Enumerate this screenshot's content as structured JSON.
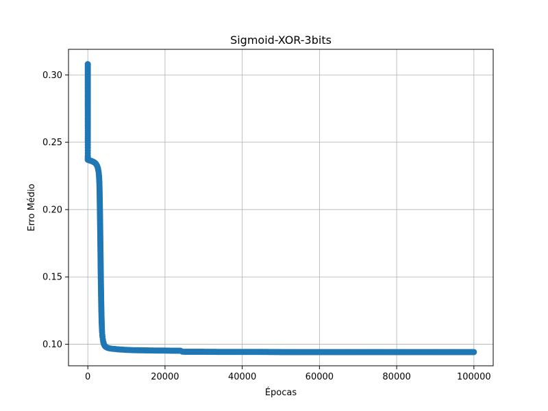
{
  "chart_data": {
    "type": "scatter",
    "title": "Sigmoid-XOR-3bits",
    "xlabel": "Épocas",
    "ylabel": "Erro Médio",
    "xlim": [
      -5000,
      105000
    ],
    "ylim": [
      0.084,
      0.319
    ],
    "xticks": [
      0,
      20000,
      40000,
      60000,
      80000,
      100000
    ],
    "yticks": [
      0.1,
      0.15,
      0.2,
      0.25,
      0.3
    ],
    "xtick_labels": [
      "0",
      "20000",
      "40000",
      "60000",
      "80000",
      "100000"
    ],
    "ytick_labels": [
      "0.10",
      "0.15",
      "0.20",
      "0.25",
      "0.30"
    ],
    "grid": true,
    "marker_color": "#1f77b4",
    "series": [
      {
        "x": [
          0,
          0,
          0,
          0,
          0,
          0,
          0,
          0,
          0,
          0,
          0,
          0,
          0,
          0,
          0,
          0,
          0,
          0,
          0,
          0,
          0,
          200,
          400,
          600,
          800,
          1000,
          1200,
          1400,
          1600,
          1800,
          2000,
          2200,
          2400,
          2600,
          2800,
          2900,
          3000,
          3050,
          3100,
          3150,
          3200,
          3250,
          3300,
          3350,
          3400,
          3450,
          3500,
          3550,
          3600,
          3650,
          3700,
          3750,
          3800,
          3900,
          4000,
          4200,
          4400,
          4600,
          4800,
          5000,
          5300,
          5600,
          6000,
          6500,
          7000,
          7500,
          8000,
          9000,
          10000,
          11000,
          12000,
          14000,
          16000,
          18000,
          20000,
          22000,
          24000,
          24500,
          25000,
          30000,
          35000,
          40000,
          45000,
          50000,
          55000,
          60000,
          65000,
          70000,
          75000,
          80000,
          85000,
          90000,
          95000,
          100000
        ],
        "y": [
          0.308,
          0.3,
          0.292,
          0.286,
          0.28,
          0.275,
          0.27,
          0.266,
          0.262,
          0.259,
          0.256,
          0.253,
          0.25,
          0.248,
          0.246,
          0.244,
          0.242,
          0.24,
          0.239,
          0.238,
          0.237,
          0.2368,
          0.2366,
          0.2364,
          0.2362,
          0.236,
          0.2358,
          0.2355,
          0.2352,
          0.2348,
          0.2343,
          0.2336,
          0.2325,
          0.231,
          0.228,
          0.225,
          0.22,
          0.214,
          0.206,
          0.197,
          0.187,
          0.176,
          0.165,
          0.154,
          0.144,
          0.135,
          0.127,
          0.121,
          0.116,
          0.112,
          0.109,
          0.107,
          0.1055,
          0.1035,
          0.1018,
          0.0998,
          0.0988,
          0.0982,
          0.0978,
          0.0975,
          0.0972,
          0.097,
          0.0968,
          0.0966,
          0.0965,
          0.0963,
          0.0962,
          0.096,
          0.0958,
          0.0957,
          0.0956,
          0.0955,
          0.0954,
          0.0953,
          0.0953,
          0.0952,
          0.0952,
          0.0945,
          0.0944,
          0.0944,
          0.0943,
          0.0943,
          0.0943,
          0.0942,
          0.0942,
          0.0942,
          0.0942,
          0.0942,
          0.0942,
          0.0942,
          0.0942,
          0.0942,
          0.0942,
          0.0942
        ]
      }
    ]
  }
}
